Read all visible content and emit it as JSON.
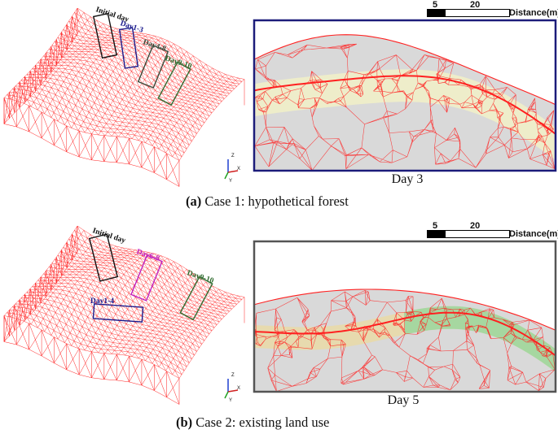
{
  "figure": {
    "panel_a": {
      "label": "(a)",
      "caption": "Case 1: hypothetical forest",
      "day_label": "Day 3",
      "box_labels": [
        "Initial day",
        "Day1-3",
        "Day4-8",
        "Day9-10"
      ],
      "box_colors": [
        "#111111",
        "#1a1a8c",
        "#3a4a3a",
        "#2f6b2f"
      ],
      "frame_color": "#1c1c7a",
      "scale": {
        "tick1": "5",
        "tick2": "20",
        "unit": "Distance(m)"
      },
      "axis_labels": [
        "Z",
        "X",
        "Y"
      ]
    },
    "panel_b": {
      "label": "(b)",
      "caption": "Case 2: existing land use",
      "day_label": "Day 5",
      "box_labels": [
        "Initial day",
        "Day1-4",
        "Day6-8",
        "Day9-10"
      ],
      "box_colors": [
        "#111111",
        "#1a1a8c",
        "#c020c0",
        "#2f6b2f"
      ],
      "frame_color": "#555555",
      "scale": {
        "tick1": "5",
        "tick2": "20",
        "unit": "Distance(m)"
      },
      "axis_labels": [
        "Z",
        "X",
        "Y"
      ]
    },
    "colors": {
      "mesh": "#ff2020",
      "soil": "#d9d9d9",
      "forest_layer": "#f0eec8",
      "grass_layer": "#9ed69e",
      "sand_layer": "#e8d9a8"
    }
  }
}
